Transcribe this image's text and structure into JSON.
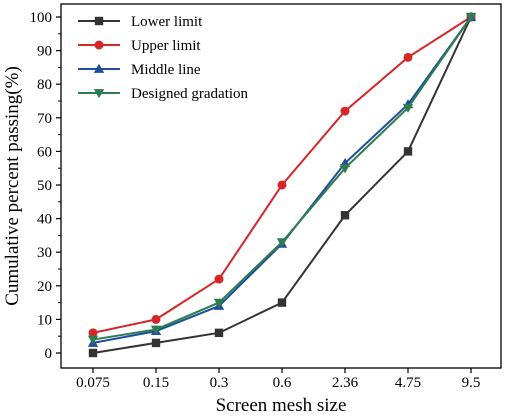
{
  "chart_data": {
    "type": "line",
    "xlabel": "Screen mesh size",
    "ylabel": "Cumulative percent passing(%)",
    "categories": [
      "0.075",
      "0.15",
      "0.3",
      "0.6",
      "2.36",
      "4.75",
      "9.5"
    ],
    "ylim": [
      0,
      100
    ],
    "yticks": [
      0,
      10,
      20,
      30,
      40,
      50,
      60,
      70,
      80,
      90,
      100
    ],
    "grid": false,
    "legend_position": "top-left",
    "series": [
      {
        "name": "Lower limit",
        "color": "#333333",
        "marker": "square",
        "values": [
          0,
          3,
          6,
          15,
          41,
          60,
          100
        ]
      },
      {
        "name": "Upper limit",
        "color": "#d62728",
        "marker": "circle",
        "values": [
          6,
          10,
          22,
          50,
          72,
          88,
          100
        ]
      },
      {
        "name": "Middle line",
        "color": "#1f4e9e",
        "marker": "triangle-up",
        "values": [
          3,
          6.5,
          14,
          32.5,
          56.5,
          74,
          100
        ]
      },
      {
        "name": "Designed gradation",
        "color": "#2e7d4f",
        "marker": "triangle-down",
        "values": [
          4,
          7,
          15,
          33,
          55,
          73,
          100
        ]
      }
    ]
  }
}
